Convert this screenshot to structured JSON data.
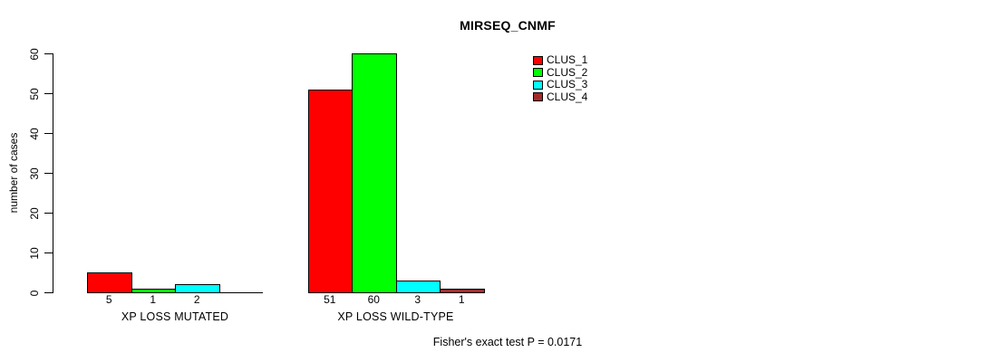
{
  "chart_data": {
    "type": "bar",
    "title": "MIRSEQ_CNMF",
    "xlabel": "",
    "ylabel": "number of cases",
    "categories": [
      "XP LOSS MUTATED",
      "XP LOSS WILD-TYPE"
    ],
    "series": [
      {
        "name": "CLUS_1",
        "color": "#FF0000",
        "values": [
          5,
          51
        ]
      },
      {
        "name": "CLUS_2",
        "color": "#00FF00",
        "values": [
          1,
          60
        ]
      },
      {
        "name": "CLUS_3",
        "color": "#00FFFF",
        "values": [
          2,
          3
        ]
      },
      {
        "name": "CLUS_4",
        "color": "#A52A2A",
        "values": [
          0,
          1
        ]
      }
    ],
    "bar_value_labels": [
      [
        "5",
        "1",
        "2",
        ""
      ],
      [
        "51",
        "60",
        "3",
        "1"
      ]
    ],
    "yticks": [
      0,
      10,
      20,
      30,
      40,
      50,
      60
    ],
    "ylim": [
      0,
      60
    ],
    "grid": false,
    "legend_position": "top-right",
    "annotation": "Fisher's exact test P = 0.0171"
  }
}
